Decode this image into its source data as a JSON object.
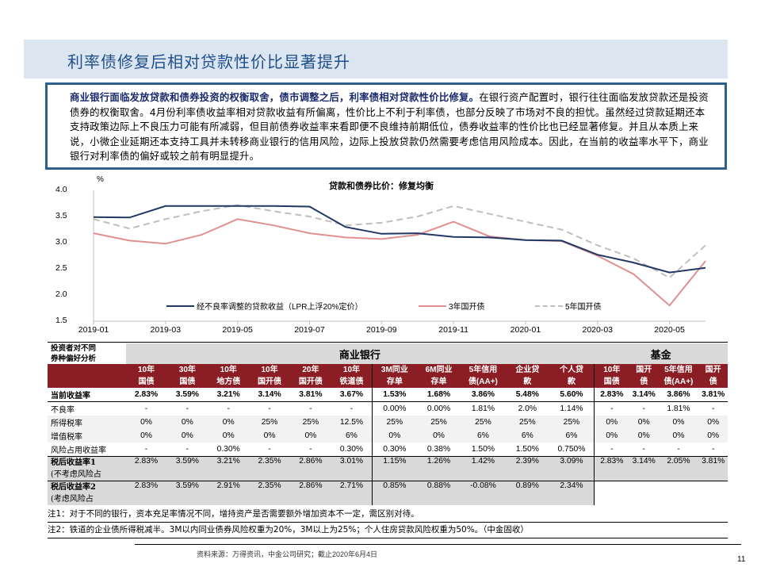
{
  "page": {
    "title": "利率债修复后相对贷款性价比显著提升",
    "page_number": "11"
  },
  "summary": {
    "bold": "商业银行面临发放贷款和债券投资的权衡取舍，债市调整之后，利率债相对贷款性价比修复。",
    "text": "在银行资产配置时，银行往往面临发放贷款还是投资债券的权衡取舍。4月份利率债收益率相对贷款收益有所偏离，性价比上不利于利率债，也部分反映了市场对不良的担忧。虽然经过贷款延期还本支持政策边际上不良压力可能有所减弱，但目前债券收益率来看即便不良维持前期低位，债券收益率的性价比也已经显著修复。并且从本质上来说，小微企业延期还本支持工具并未转移商业银行的信用风险，边际上投放贷款仍然需要考虑信用风险成本。因此，在当前的收益率水平下，商业银行对利率债的偏好或较之前有明显提升。"
  },
  "chart_data": {
    "type": "line",
    "title": "贷款和债券比价：修复均衡",
    "ylabel": "%",
    "ylim": [
      1.5,
      4.0
    ],
    "yticks": [
      "4.0",
      "3.5",
      "3.0",
      "2.5",
      "2.0",
      "1.5"
    ],
    "xticks": [
      "2019-01",
      "2019-03",
      "2019-05",
      "2019-07",
      "2019-09",
      "2019-11",
      "2020-01",
      "2020-03",
      "2020-05"
    ],
    "x": [
      "2019-01",
      "2019-02",
      "2019-03",
      "2019-04",
      "2019-05",
      "2019-06",
      "2019-07",
      "2019-08",
      "2019-09",
      "2019-10",
      "2019-11",
      "2019-12",
      "2020-01",
      "2020-02",
      "2020-03",
      "2020-04",
      "2020-05",
      "2020-06"
    ],
    "series": [
      {
        "name": "经不良率调整的贷款收益（LPR上浮20%定价）",
        "color": "#1f3864",
        "style": "solid",
        "values": [
          3.49,
          3.48,
          3.7,
          3.7,
          3.7,
          3.7,
          3.69,
          3.3,
          3.17,
          3.18,
          3.11,
          3.1,
          3.05,
          3.04,
          2.77,
          2.62,
          2.43,
          2.52
        ]
      },
      {
        "name": "3年国开债",
        "color": "#e0908f",
        "style": "solid",
        "values": [
          3.18,
          3.04,
          2.98,
          3.15,
          3.45,
          3.33,
          3.18,
          3.1,
          3.07,
          3.15,
          3.4,
          3.12,
          3.05,
          3.03,
          2.75,
          2.4,
          1.8,
          2.65
        ]
      },
      {
        "name": "5年国开债",
        "color": "#bfbfbf",
        "style": "dashed",
        "values": [
          3.45,
          3.27,
          3.45,
          3.6,
          3.72,
          3.6,
          3.5,
          3.33,
          3.38,
          3.5,
          3.7,
          3.55,
          3.4,
          3.25,
          2.95,
          2.7,
          2.33,
          2.95
        ]
      }
    ],
    "legend": [
      "经不良率调整的贷款收益（LPR上浮20%定价）",
      "3年国开债",
      "5年国开债"
    ],
    "legend_position": "bottom-inside"
  },
  "table": {
    "corner_label_1": "投资者对不同",
    "corner_label_2": "券种偏好分析",
    "group_bank": "商业银行",
    "group_fund": "基金",
    "columns": [
      {
        "l1": "10年",
        "l2": "国债"
      },
      {
        "l1": "30年",
        "l2": "国债"
      },
      {
        "l1": "10年",
        "l2": "地方债"
      },
      {
        "l1": "10年",
        "l2": "国开债"
      },
      {
        "l1": "20年",
        "l2": "国开债"
      },
      {
        "l1": "10年",
        "l2": "铁道债"
      },
      {
        "l1": "3M同业",
        "l2": "存单"
      },
      {
        "l1": "6M同业",
        "l2": "存单"
      },
      {
        "l1": "5年信用",
        "l2": "债(AA+)"
      },
      {
        "l1": "企业贷",
        "l2": "款"
      },
      {
        "l1": "个人贷",
        "l2": "款"
      },
      {
        "l1": "10年",
        "l2": "国债"
      },
      {
        "l1": "国开",
        "l2": "债"
      },
      {
        "l1": "5年信用",
        "l2": "债(AA+)"
      },
      {
        "l1": "国开",
        "l2": "债"
      }
    ],
    "rows": {
      "current": {
        "label": "当前收益率",
        "values": [
          "2.83%",
          "3.59%",
          "3.21%",
          "3.14%",
          "3.81%",
          "3.67%",
          "1.53%",
          "1.68%",
          "3.86%",
          "5.48%",
          "5.60%",
          "2.83%",
          "3.14%",
          "3.86%",
          "3.81%"
        ]
      },
      "npl": {
        "label": "不良率",
        "values": [
          "-",
          "-",
          "-",
          "-",
          "-",
          "-",
          "0.00%",
          "0.00%",
          "1.81%",
          "2.0%",
          "1.14%",
          "-",
          "-",
          "1.81%",
          "-"
        ]
      },
      "income_tax": {
        "label": "所得税率",
        "values": [
          "0%",
          "0%",
          "0%",
          "25%",
          "25%",
          "12.5%",
          "25%",
          "25%",
          "25%",
          "25%",
          "25%",
          "0%",
          "0%",
          "0%",
          "0%"
        ]
      },
      "vat": {
        "label": "增值税率",
        "values": [
          "0%",
          "0%",
          "0%",
          "0%",
          "0%",
          "6%",
          "0%",
          "0%",
          "6%",
          "6%",
          "6%",
          "0%",
          "0%",
          "0%",
          "0%"
        ]
      },
      "risk": {
        "label": "风险占用收益率",
        "values": [
          "-",
          "-",
          "0.30%",
          "-",
          "-",
          "0.30%",
          "0.30%",
          "0.38%",
          "1.50%",
          "1.50%",
          "0.750%",
          "-",
          "-",
          "-",
          "-"
        ]
      },
      "after1": {
        "label1": "税后收益率1",
        "label2": "(不考虑风险占",
        "values": [
          "2.83%",
          "3.59%",
          "3.21%",
          "2.35%",
          "2.86%",
          "3.01%",
          "1.15%",
          "1.26%",
          "1.42%",
          "2.39%",
          "3.09%",
          "2.83%",
          "3.14%",
          "2.05%",
          "3.81%"
        ]
      },
      "after2": {
        "label1": "税后收益率2",
        "label2": "(考虑风险占",
        "values": [
          "2.83%",
          "3.59%",
          "2.91%",
          "2.35%",
          "2.86%",
          "2.71%",
          "0.85%",
          "0.88%",
          "-0.08%",
          "0.89%",
          "2.34%",
          "",
          "",
          "",
          ""
        ]
      }
    }
  },
  "notes": {
    "note1": "注1：对于不同的银行，资本充足率情况不同，增持资产是否需要额外增加资本不一定，需区别对待。",
    "note2": "注2：铁道的企业债所得税减半。3M以内同业债券风险权重为20%，3M以上为25%；个人住房贷款风险权重为50%。（中金固收）"
  },
  "source": "资料来源：万得资讯，中金公司研究；截止2020年6月4日"
}
